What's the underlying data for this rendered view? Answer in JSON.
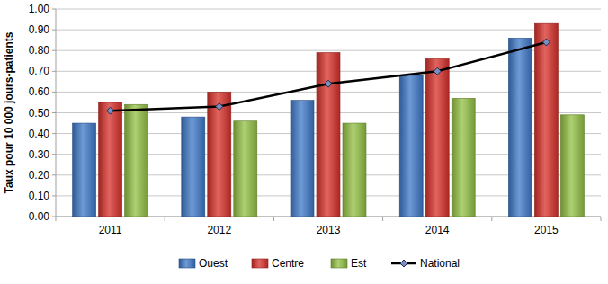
{
  "chart_data": {
    "type": "bar",
    "y_label": "Taux pour 10 000 jours-patients",
    "categories": [
      "2011",
      "2012",
      "2013",
      "2014",
      "2015"
    ],
    "series": [
      {
        "name": "Ouest",
        "type": "bar",
        "color": "#3d78c8",
        "values": [
          0.45,
          0.48,
          0.56,
          0.68,
          0.86
        ]
      },
      {
        "name": "Centre",
        "type": "bar",
        "color": "#d8302a",
        "values": [
          0.55,
          0.6,
          0.79,
          0.76,
          0.93
        ]
      },
      {
        "name": "Est",
        "type": "bar",
        "color": "#92c043",
        "values": [
          0.54,
          0.46,
          0.45,
          0.57,
          0.49
        ]
      },
      {
        "name": "National",
        "type": "line",
        "color": "#000000",
        "marker": "diamond",
        "values": [
          0.51,
          0.53,
          0.64,
          0.7,
          0.84
        ]
      }
    ],
    "ylim": [
      0,
      1
    ],
    "yticks": [
      {
        "value": 0,
        "label": "0.00"
      },
      {
        "value": 0.1,
        "label": "0.10"
      },
      {
        "value": 0.2,
        "label": "0.20"
      },
      {
        "value": 0.3,
        "label": "0.30"
      },
      {
        "value": 0.4,
        "label": "0.40"
      },
      {
        "value": 0.5,
        "label": "0.50"
      },
      {
        "value": 0.6,
        "label": "0.60"
      },
      {
        "value": 0.7,
        "label": "0.70"
      },
      {
        "value": 0.8,
        "label": "0.80"
      },
      {
        "value": 0.9,
        "label": "0.90"
      },
      {
        "value": 1,
        "label": "1.00"
      }
    ],
    "grid": true,
    "legend": "bottom"
  }
}
